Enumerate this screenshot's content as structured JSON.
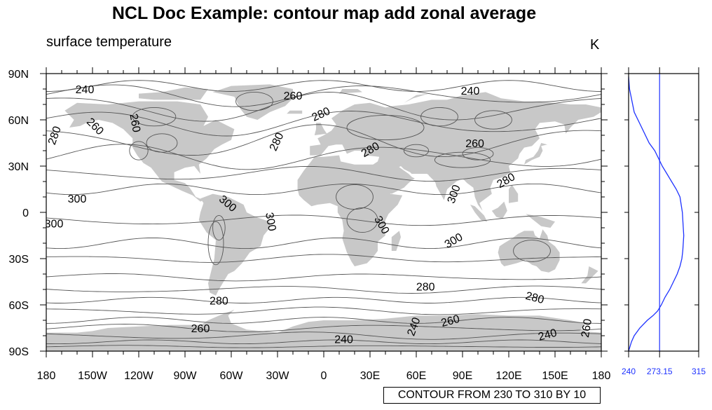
{
  "title": "NCL Doc Example:  contour map add zonal average",
  "subtitle_left": "surface temperature",
  "subtitle_right": "K",
  "info_label": "CONTOUR FROM 230 TO 310 BY 10",
  "colors": {
    "land": "#c8c8c8",
    "ocean": "#ffffff",
    "contour": "#555555",
    "zonal_line": "#1e32ff",
    "zonal_tick_text": "#1e32ff"
  },
  "chart_data": [
    {
      "type": "contour-map",
      "x_tick_labels": [
        "180",
        "150W",
        "120W",
        "90W",
        "60W",
        "30W",
        "0",
        "30E",
        "60E",
        "90E",
        "120E",
        "150E",
        "180"
      ],
      "y_tick_labels": [
        "90N",
        "60N",
        "30N",
        "0",
        "30S",
        "60S",
        "90S"
      ],
      "contour_levels": {
        "min": 230,
        "max": 310,
        "step": 10
      },
      "contour_labels": [
        {
          "text": "240",
          "lon": -155,
          "lat": 80,
          "rot": 0
        },
        {
          "text": "260",
          "lon": -20,
          "lat": 76,
          "rot": 0
        },
        {
          "text": "240",
          "lon": 95,
          "lat": 79,
          "rot": 0
        },
        {
          "text": "280",
          "lon": -175,
          "lat": 50,
          "rot": -70
        },
        {
          "text": "260",
          "lon": -148,
          "lat": 56,
          "rot": 45
        },
        {
          "text": "260",
          "lon": -122,
          "lat": 58,
          "rot": 80
        },
        {
          "text": "280",
          "lon": -2,
          "lat": 64,
          "rot": -25
        },
        {
          "text": "280",
          "lon": -31,
          "lat": 46,
          "rot": -65
        },
        {
          "text": "280",
          "lon": 30,
          "lat": 41,
          "rot": -30
        },
        {
          "text": "260",
          "lon": 98,
          "lat": 45,
          "rot": 0
        },
        {
          "text": "280",
          "lon": 118,
          "lat": 21,
          "rot": -30
        },
        {
          "text": "300",
          "lon": -160,
          "lat": 9,
          "rot": 0
        },
        {
          "text": "300",
          "lon": -62,
          "lat": 6,
          "rot": 40
        },
        {
          "text": "300",
          "lon": -175,
          "lat": -7,
          "rot": 0
        },
        {
          "text": "300",
          "lon": -34,
          "lat": -6,
          "rot": 80
        },
        {
          "text": "300",
          "lon": 38,
          "lat": -8,
          "rot": 60
        },
        {
          "text": "300",
          "lon": 84,
          "lat": 12,
          "rot": -70
        },
        {
          "text": "300",
          "lon": 84,
          "lat": -18,
          "rot": -30
        },
        {
          "text": "280",
          "lon": 66,
          "lat": -48,
          "rot": 0
        },
        {
          "text": "280",
          "lon": 137,
          "lat": -55,
          "rot": 15
        },
        {
          "text": "280",
          "lon": -68,
          "lat": -57,
          "rot": 0
        },
        {
          "text": "260",
          "lon": -80,
          "lat": -75,
          "rot": 0
        },
        {
          "text": "240",
          "lon": 13,
          "lat": -82,
          "rot": 0
        },
        {
          "text": "240",
          "lon": 58,
          "lat": -74,
          "rot": -70
        },
        {
          "text": "260",
          "lon": 82,
          "lat": -70,
          "rot": -15
        },
        {
          "text": "240",
          "lon": 145,
          "lat": -79,
          "rot": -15
        },
        {
          "text": "260",
          "lon": 170,
          "lat": -75,
          "rot": -80
        }
      ]
    },
    {
      "type": "line",
      "xlim": [
        240,
        315
      ],
      "x_tick_labels": [
        "240",
        "273.15",
        "315"
      ],
      "reference_line": 273.15,
      "series": [
        {
          "x": [
            240.0,
            241.5,
            243,
            246,
            252,
            260,
            266,
            271,
            275,
            279,
            284,
            288,
            292,
            295,
            297,
            298,
            298.5,
            299,
            298.5,
            297.5,
            295,
            291,
            286,
            281,
            276,
            272,
            268,
            262,
            254,
            246,
            241,
            240.0
          ],
          "y": [
            -90,
            -87,
            -84,
            -80,
            -75,
            -70,
            -67,
            -64,
            -60,
            -55,
            -50,
            -45,
            -40,
            -35,
            -30,
            -25,
            -20,
            -15,
            -10,
            0,
            10,
            15,
            20,
            25,
            30,
            35,
            40,
            45,
            55,
            65,
            80,
            88
          ]
        }
      ]
    }
  ]
}
